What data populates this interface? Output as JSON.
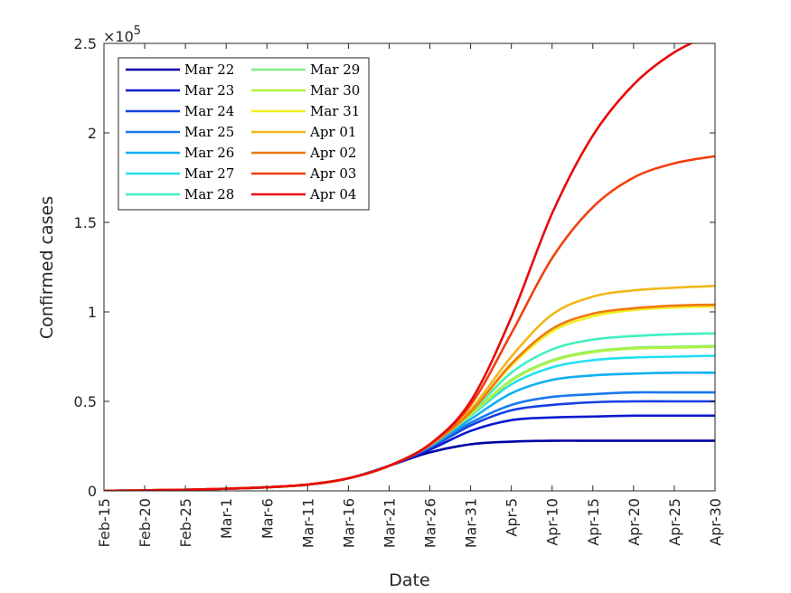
{
  "chart_data": {
    "type": "line",
    "xlabel": "Date",
    "ylabel": "Confirmed cases",
    "y_exponent_label": "×10",
    "y_exponent_power": "5",
    "x_ticks": [
      "Feb-15",
      "Feb-20",
      "Feb-25",
      "Mar-1",
      "Mar-6",
      "Mar-11",
      "Mar-16",
      "Mar-21",
      "Mar-26",
      "Mar-31",
      "Apr-5",
      "Apr-10",
      "Apr-15",
      "Apr-20",
      "Apr-25",
      "Apr-30"
    ],
    "xlim": [
      "Feb-15",
      "Apr-30"
    ],
    "y_ticks": [
      "0",
      "0.5",
      "1",
      "1.5",
      "2",
      "2.5"
    ],
    "ylim": [
      0,
      250000
    ],
    "legend_position": "top-left",
    "grid": false,
    "x": [
      "Feb-15",
      "Feb-20",
      "Feb-25",
      "Mar-1",
      "Mar-6",
      "Mar-11",
      "Mar-16",
      "Mar-21",
      "Mar-26",
      "Mar-31",
      "Apr-5",
      "Apr-10",
      "Apr-15",
      "Apr-20",
      "Apr-25",
      "Apr-30"
    ],
    "series": [
      {
        "name": "Mar 22",
        "color": "#0000a8",
        "values": [
          0,
          300,
          600,
          1200,
          2000,
          3500,
          7000,
          14000,
          21500,
          26000,
          27500,
          28000,
          28000,
          28000,
          28000,
          28000
        ]
      },
      {
        "name": "Mar 23",
        "color": "#0a1ad0",
        "values": [
          0,
          300,
          600,
          1200,
          2000,
          3500,
          7000,
          14000,
          23000,
          33500,
          39500,
          41000,
          41500,
          42000,
          42000,
          42000
        ]
      },
      {
        "name": "Mar 24",
        "color": "#1440e0",
        "values": [
          0,
          300,
          600,
          1200,
          2000,
          3500,
          7000,
          14000,
          24000,
          36500,
          45000,
          48000,
          49500,
          50000,
          50000,
          50000
        ]
      },
      {
        "name": "Mar 25",
        "color": "#1a78f0",
        "values": [
          0,
          300,
          600,
          1200,
          2000,
          3500,
          7000,
          14000,
          24500,
          38000,
          48000,
          52500,
          54000,
          55000,
          55000,
          55000
        ]
      },
      {
        "name": "Mar 26",
        "color": "#10b0f0",
        "values": [
          0,
          300,
          600,
          1200,
          2000,
          3500,
          7000,
          14000,
          25000,
          40000,
          54500,
          62000,
          64500,
          65500,
          66000,
          66000
        ]
      },
      {
        "name": "Mar 27",
        "color": "#20e0f0",
        "values": [
          0,
          300,
          600,
          1200,
          2000,
          3500,
          7000,
          14000,
          25500,
          42000,
          59500,
          69000,
          73000,
          74500,
          75000,
          75500
        ]
      },
      {
        "name": "Mar 28",
        "color": "#40f0c0",
        "values": [
          0,
          300,
          600,
          1200,
          2000,
          3500,
          7000,
          14000,
          25500,
          43500,
          66000,
          79000,
          84500,
          86500,
          87500,
          88000
        ]
      },
      {
        "name": "Mar 29",
        "color": "#80f080",
        "values": [
          0,
          300,
          600,
          1200,
          2000,
          3500,
          7000,
          14000,
          25500,
          42500,
          62000,
          73000,
          78000,
          80000,
          80500,
          81000
        ]
      },
      {
        "name": "Mar 30",
        "color": "#b0f040",
        "values": [
          0,
          300,
          600,
          1200,
          2000,
          3500,
          7000,
          14000,
          25500,
          42500,
          61500,
          72500,
          77500,
          79500,
          80000,
          80500
        ]
      },
      {
        "name": "Mar 31",
        "color": "#f0f020",
        "values": [
          0,
          300,
          600,
          1200,
          2000,
          3500,
          7000,
          14000,
          25500,
          44000,
          70000,
          89000,
          97500,
          101000,
          102500,
          103000
        ]
      },
      {
        "name": "Apr 01",
        "color": "#f0b818",
        "values": [
          0,
          300,
          600,
          1200,
          2000,
          3500,
          7000,
          14000,
          26000,
          45500,
          75000,
          98500,
          108500,
          112000,
          113500,
          114500
        ]
      },
      {
        "name": "Apr 02",
        "color": "#f07810",
        "values": [
          0,
          300,
          600,
          1200,
          2000,
          3500,
          7000,
          14000,
          25500,
          44000,
          71000,
          90500,
          99000,
          102000,
          103500,
          104000
        ]
      },
      {
        "name": "Apr 03",
        "color": "#f04010",
        "values": [
          0,
          300,
          600,
          1200,
          2000,
          3500,
          7000,
          14000,
          26000,
          48000,
          88000,
          130000,
          158500,
          175000,
          183000,
          187000
        ]
      },
      {
        "name": "Apr 04",
        "color": "#e80a0a",
        "values": [
          0,
          300,
          600,
          1200,
          2000,
          3500,
          7000,
          14000,
          26000,
          50000,
          97000,
          155000,
          198500,
          227000,
          245000,
          256000
        ]
      }
    ]
  }
}
